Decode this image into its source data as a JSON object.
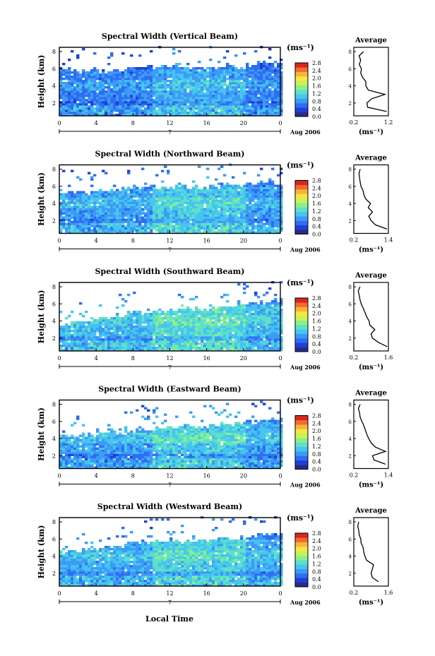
{
  "colors": {
    "scale": [
      "#2a2a8c",
      "#1f3fd8",
      "#2d6ef2",
      "#3d9af5",
      "#45c5f0",
      "#5fe0c8",
      "#8cf08a",
      "#c8f25a",
      "#f5e642",
      "#f7b43a",
      "#f56a2e",
      "#d9261f"
    ]
  },
  "common": {
    "ylabel": "Height (km)",
    "time_label": "Local Time",
    "units": "(ms⁻¹)",
    "average_title": "Average",
    "date_marker": "7",
    "date_label": "Aug 2006"
  },
  "chart_data": [
    {
      "type": "heatmap",
      "title": "Spectral Width (Vertical Beam)",
      "xlabel": "",
      "ylabel": "Height (km)",
      "x_ticks": [
        "0",
        "4",
        "8",
        "12",
        "16",
        "20",
        "0"
      ],
      "y_ticks": [
        "2",
        "4",
        "6",
        "8"
      ],
      "colorbar_ticks": [
        "0.0",
        "0.4",
        "0.8",
        "1.2",
        "1.6",
        "2.0",
        "2.4",
        "2.8"
      ],
      "xlim": [
        0,
        24
      ],
      "ylim": [
        0.5,
        8.5
      ],
      "colorbar_range": [
        0.0,
        2.8
      ],
      "cloud_top": [
        5.9,
        5.8,
        5.6,
        5.8,
        5.6,
        5.6,
        5.8,
        6.0,
        6.2,
        6.2,
        6.0,
        6.1,
        6.2,
        6.0,
        5.8,
        5.9,
        6.1,
        6.2,
        6.1,
        6.0,
        6.3,
        6.5,
        6.6,
        6.4,
        6.2
      ],
      "level_profile": [
        0.4,
        0.5,
        0.6,
        0.5,
        0.4,
        0.3
      ],
      "average": {
        "x_ticks": [
          "0.2",
          "1.2"
        ],
        "xlim": [
          0.2,
          1.2
        ],
        "heights": [
          1.0,
          1.5,
          2.0,
          2.5,
          3.0,
          3.5,
          4.0,
          4.5,
          5.0,
          5.5,
          6.0,
          6.5,
          7.0,
          7.5,
          8.0
        ],
        "values": [
          1.15,
          0.6,
          0.58,
          0.72,
          1.1,
          0.62,
          0.55,
          0.55,
          0.45,
          0.4,
          0.42,
          0.36,
          0.4,
          0.35,
          0.48
        ]
      }
    },
    {
      "type": "heatmap",
      "title": "Spectral Width (Northward Beam)",
      "xlabel": "",
      "ylabel": "Height (km)",
      "x_ticks": [
        "0",
        "4",
        "8",
        "12",
        "16",
        "20",
        "0"
      ],
      "y_ticks": [
        "2",
        "4",
        "6",
        "8"
      ],
      "colorbar_ticks": [
        "0.0",
        "0.4",
        "0.8",
        "1.2",
        "1.6",
        "2.0",
        "2.4",
        "2.8"
      ],
      "xlim": [
        0,
        24
      ],
      "ylim": [
        0.5,
        8.5
      ],
      "colorbar_range": [
        0.0,
        2.8
      ],
      "cloud_top": [
        5.3,
        5.2,
        5.1,
        5.2,
        5.4,
        5.5,
        5.6,
        5.7,
        5.9,
        6.0,
        5.8,
        5.7,
        5.9,
        6.0,
        5.8,
        5.7,
        5.9,
        6.1,
        6.0,
        5.9,
        6.2,
        6.3,
        6.4,
        6.1,
        6.0
      ],
      "level_profile": [
        0.5,
        0.6,
        0.7,
        0.6,
        0.5,
        0.35
      ],
      "average": {
        "x_ticks": [
          "0.2",
          "1.4"
        ],
        "xlim": [
          0.2,
          1.4
        ],
        "heights": [
          1.0,
          1.5,
          2.0,
          2.5,
          3.0,
          3.5,
          4.0,
          4.5,
          5.0,
          5.5,
          6.0,
          6.5,
          7.0,
          7.5,
          8.0
        ],
        "values": [
          1.35,
          0.95,
          0.8,
          0.72,
          0.85,
          0.7,
          0.78,
          0.62,
          0.55,
          0.52,
          0.45,
          0.42,
          0.4,
          0.38,
          0.42
        ]
      }
    },
    {
      "type": "heatmap",
      "title": "Spectral Width (Southward Beam)",
      "xlabel": "",
      "ylabel": "Height (km)",
      "x_ticks": [
        "0",
        "4",
        "8",
        "12",
        "16",
        "20",
        "0"
      ],
      "y_ticks": [
        "2",
        "4",
        "6",
        "8"
      ],
      "colorbar_ticks": [
        "0.0",
        "0.4",
        "0.8",
        "1.2",
        "1.6",
        "2.0",
        "2.4",
        "2.8"
      ],
      "xlim": [
        0,
        24
      ],
      "ylim": [
        0.5,
        8.5
      ],
      "colorbar_range": [
        0.0,
        2.8
      ],
      "cloud_top": [
        3.6,
        3.7,
        3.9,
        4.0,
        4.2,
        4.4,
        4.6,
        4.8,
        4.9,
        5.0,
        5.0,
        5.1,
        5.3,
        5.4,
        5.3,
        5.2,
        5.4,
        5.6,
        5.7,
        5.8,
        5.9,
        6.0,
        6.1,
        6.3,
        6.4
      ],
      "level_profile": [
        0.55,
        0.7,
        0.8,
        0.7,
        0.5,
        0.35
      ],
      "average": {
        "x_ticks": [
          "0.2",
          "1.6"
        ],
        "xlim": [
          0.2,
          1.6
        ],
        "heights": [
          1.0,
          1.5,
          2.0,
          2.5,
          3.0,
          3.5,
          4.0,
          4.5,
          5.0,
          5.5,
          6.0,
          6.5,
          7.0,
          7.5,
          8.0
        ],
        "values": [
          1.55,
          1.2,
          0.95,
          0.9,
          1.05,
          0.85,
          0.82,
          0.72,
          0.65,
          0.58,
          0.5,
          0.45,
          0.42,
          0.38,
          0.45
        ]
      }
    },
    {
      "type": "heatmap",
      "title": "Spectral Width (Eastward Beam)",
      "xlabel": "",
      "ylabel": "Height (km)",
      "x_ticks": [
        "0",
        "4",
        "8",
        "12",
        "16",
        "20",
        "0"
      ],
      "y_ticks": [
        "2",
        "4",
        "6",
        "8"
      ],
      "colorbar_ticks": [
        "0.0",
        "0.4",
        "0.8",
        "1.2",
        "1.6",
        "2.0",
        "2.4",
        "2.8"
      ],
      "xlim": [
        0,
        24
      ],
      "ylim": [
        0.5,
        8.5
      ],
      "colorbar_range": [
        0.0,
        2.8
      ],
      "cloud_top": [
        4.3,
        4.2,
        4.3,
        4.4,
        4.5,
        4.6,
        4.7,
        4.8,
        5.0,
        5.1,
        5.0,
        5.2,
        5.3,
        5.4,
        5.3,
        5.2,
        5.4,
        5.5,
        5.6,
        5.7,
        5.8,
        6.0,
        6.1,
        6.2,
        6.0
      ],
      "level_profile": [
        0.45,
        0.6,
        0.75,
        0.65,
        0.5,
        0.35
      ],
      "average": {
        "x_ticks": [
          "0.2",
          "1.4"
        ],
        "xlim": [
          0.2,
          1.4
        ],
        "heights": [
          1.0,
          1.5,
          2.0,
          2.5,
          3.0,
          3.5,
          4.0,
          4.5,
          5.0,
          5.5,
          6.0,
          6.5,
          7.0,
          7.5,
          8.0
        ],
        "values": [
          1.3,
          0.9,
          0.85,
          1.3,
          0.95,
          0.8,
          0.72,
          0.65,
          0.6,
          0.55,
          0.48,
          0.42,
          0.4,
          0.36,
          0.42
        ]
      }
    },
    {
      "type": "heatmap",
      "title": "Spectral Width (Westward Beam)",
      "xlabel": "Local Time",
      "ylabel": "Height (km)",
      "x_ticks": [
        "0",
        "4",
        "8",
        "12",
        "16",
        "20",
        "0"
      ],
      "y_ticks": [
        "2",
        "4",
        "6",
        "8"
      ],
      "colorbar_ticks": [
        "0.0",
        "0.4",
        "0.8",
        "1.2",
        "1.6",
        "2.0",
        "2.4",
        "2.8"
      ],
      "xlim": [
        0,
        24
      ],
      "ylim": [
        0.5,
        8.5
      ],
      "colorbar_range": [
        0.0,
        2.8
      ],
      "cloud_top": [
        4.4,
        4.5,
        4.6,
        4.8,
        4.9,
        5.0,
        5.1,
        5.3,
        5.4,
        5.5,
        5.6,
        5.7,
        5.8,
        5.7,
        5.6,
        5.7,
        5.8,
        5.9,
        6.0,
        6.1,
        6.2,
        6.3,
        6.4,
        6.5,
        6.6
      ],
      "level_profile": [
        0.5,
        0.65,
        0.75,
        0.65,
        0.5,
        0.35
      ],
      "average": {
        "x_ticks": [
          "0.2",
          "1.6"
        ],
        "xlim": [
          0.2,
          1.6
        ],
        "heights": [
          1.0,
          1.5,
          2.0,
          2.5,
          3.0,
          3.5,
          4.0,
          4.5,
          5.0,
          5.5,
          6.0,
          6.5,
          7.0,
          7.5,
          8.0
        ],
        "values": [
          1.2,
          0.95,
          0.9,
          0.95,
          1.0,
          0.72,
          0.65,
          0.6,
          0.58,
          0.5,
          0.48,
          0.42,
          0.4,
          0.36,
          0.4
        ]
      }
    }
  ]
}
